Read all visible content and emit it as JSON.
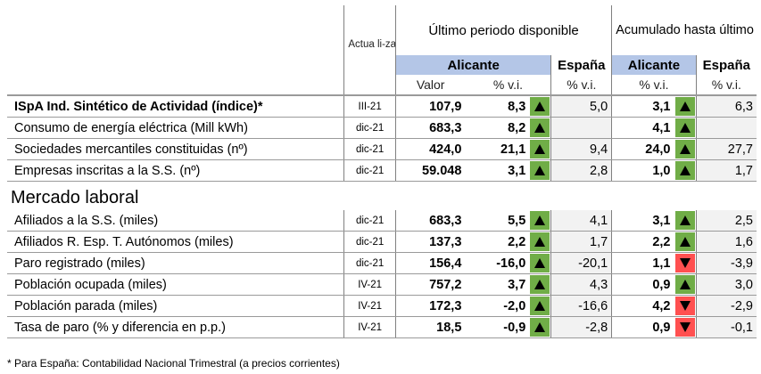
{
  "header": {
    "actualizacion": "Actua li-zación",
    "ultimo_periodo": "Último periodo disponible",
    "acumulado": "Acumulado hasta último disponible",
    "alicante": "Alicante",
    "espana": "España",
    "valor": "Valor",
    "pct_vi": "% v.i."
  },
  "indicators": [
    {
      "label": "ISpA Ind. Sintético de Actividad (índice)*",
      "bold": true,
      "act": "III-21",
      "valor": "107,9",
      "pct": "8,3",
      "trend": "up",
      "esp": "5,0",
      "acum": "3,1",
      "acum_trend": "up",
      "esp2": "6,3"
    },
    {
      "label": "Consumo de energía eléctrica (Mill kWh)",
      "act": "dic-21",
      "valor": "683,3",
      "pct": "8,2",
      "trend": "up",
      "esp": "",
      "acum": "4,1",
      "acum_trend": "up",
      "esp2": ""
    },
    {
      "label": "Sociedades mercantiles constituidas (nº)",
      "act": "dic-21",
      "valor": "424,0",
      "pct": "21,1",
      "trend": "up",
      "esp": "9,4",
      "acum": "24,0",
      "acum_trend": "up",
      "esp2": "27,7"
    },
    {
      "label": "Empresas inscritas a la S.S. (nº)",
      "act": "dic-21",
      "valor": "59.048",
      "pct": "3,1",
      "trend": "up",
      "esp": "2,8",
      "acum": "1,0",
      "acum_trend": "up",
      "esp2": "1,7"
    }
  ],
  "section_title": "Mercado laboral",
  "labor": [
    {
      "label": "Afiliados a la S.S. (miles)",
      "act": "dic-21",
      "valor": "683,3",
      "pct": "5,5",
      "trend": "up",
      "esp": "4,1",
      "acum": "3,1",
      "acum_trend": "up",
      "esp2": "2,5"
    },
    {
      "label": "Afiliados R. Esp. T. Autónomos (miles)",
      "act": "dic-21",
      "valor": "137,3",
      "pct": "2,2",
      "trend": "up",
      "esp": "1,7",
      "acum": "2,2",
      "acum_trend": "up",
      "esp2": "1,6"
    },
    {
      "label": "Paro registrado (miles)",
      "act": "dic-21",
      "valor": "156,4",
      "pct": "-16,0",
      "trend": "up",
      "esp": "-20,1",
      "acum": "1,1",
      "acum_trend": "down",
      "esp2": "-3,9"
    },
    {
      "label": "Población ocupada (miles)",
      "act": "IV-21",
      "valor": "757,2",
      "pct": "3,7",
      "trend": "up",
      "esp": "4,3",
      "acum": "0,9",
      "acum_trend": "up",
      "esp2": "3,0"
    },
    {
      "label": "Población parada (miles)",
      "act": "IV-21",
      "valor": "172,3",
      "pct": "-2,0",
      "trend": "up",
      "esp": "-16,6",
      "acum": "4,2",
      "acum_trend": "down",
      "esp2": "-2,9"
    },
    {
      "label": "Tasa de paro (% y diferencia en p.p.)",
      "act": "IV-21",
      "valor": "18,5",
      "pct": "-0,9",
      "trend": "up",
      "esp": "-2,8",
      "acum": "0,9",
      "acum_trend": "down",
      "esp2": "-0,1"
    }
  ],
  "footnote": "* Para España: Contabilidad Nacional Trimestral (a precios corrientes)",
  "colors": {
    "up": "#70ad47",
    "down": "#ff5050",
    "header_band": "#b4c6e7",
    "spain_bg": "#f2f2f2"
  }
}
